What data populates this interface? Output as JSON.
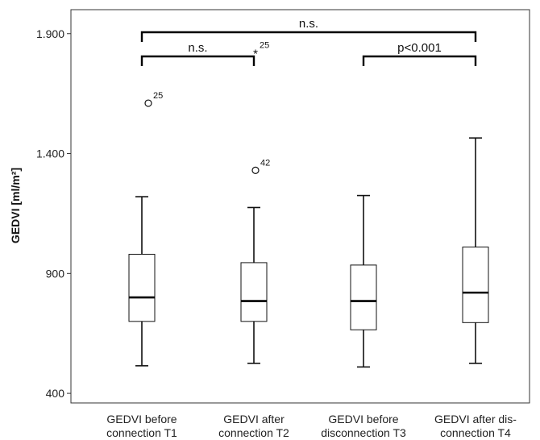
{
  "chart_data": {
    "type": "boxplot",
    "ylabel": "GEDVI [ml/m²]",
    "ylim": [
      360,
      2000
    ],
    "yticks": [
      {
        "value": 400,
        "label": "400"
      },
      {
        "value": 900,
        "label": "900"
      },
      {
        "value": 1400,
        "label": "1.400"
      },
      {
        "value": 1900,
        "label": "1.900"
      }
    ],
    "categories": [
      [
        "GEDVI before",
        "connection T1"
      ],
      [
        "GEDVI after",
        "connection T2"
      ],
      [
        "GEDVI before",
        "disconnection T3"
      ],
      [
        "GEDVI after dis-",
        "connection T4"
      ]
    ],
    "boxes": [
      {
        "min": 515,
        "q1": 700,
        "median": 800,
        "q3": 980,
        "max": 1220
      },
      {
        "min": 525,
        "q1": 700,
        "median": 785,
        "q3": 945,
        "max": 1175
      },
      {
        "min": 510,
        "q1": 665,
        "median": 785,
        "q3": 935,
        "max": 1225
      },
      {
        "min": 525,
        "q1": 695,
        "median": 820,
        "q3": 1010,
        "max": 1465
      }
    ],
    "outliers": [
      {
        "box": 0,
        "value": 1610,
        "label": "25",
        "marker": "circle"
      },
      {
        "box": 1,
        "value": 1330,
        "label": "42",
        "marker": "circle"
      },
      {
        "box": 1,
        "value": 1820,
        "label": "25",
        "marker": "star"
      }
    ],
    "significance": [
      {
        "from": 0,
        "to": 1,
        "level": 1,
        "label": "n.s."
      },
      {
        "from": 2,
        "to": 3,
        "level": 1,
        "label": "p<0.001"
      },
      {
        "from": 0,
        "to": 3,
        "level": 2,
        "label": "n.s."
      }
    ]
  }
}
